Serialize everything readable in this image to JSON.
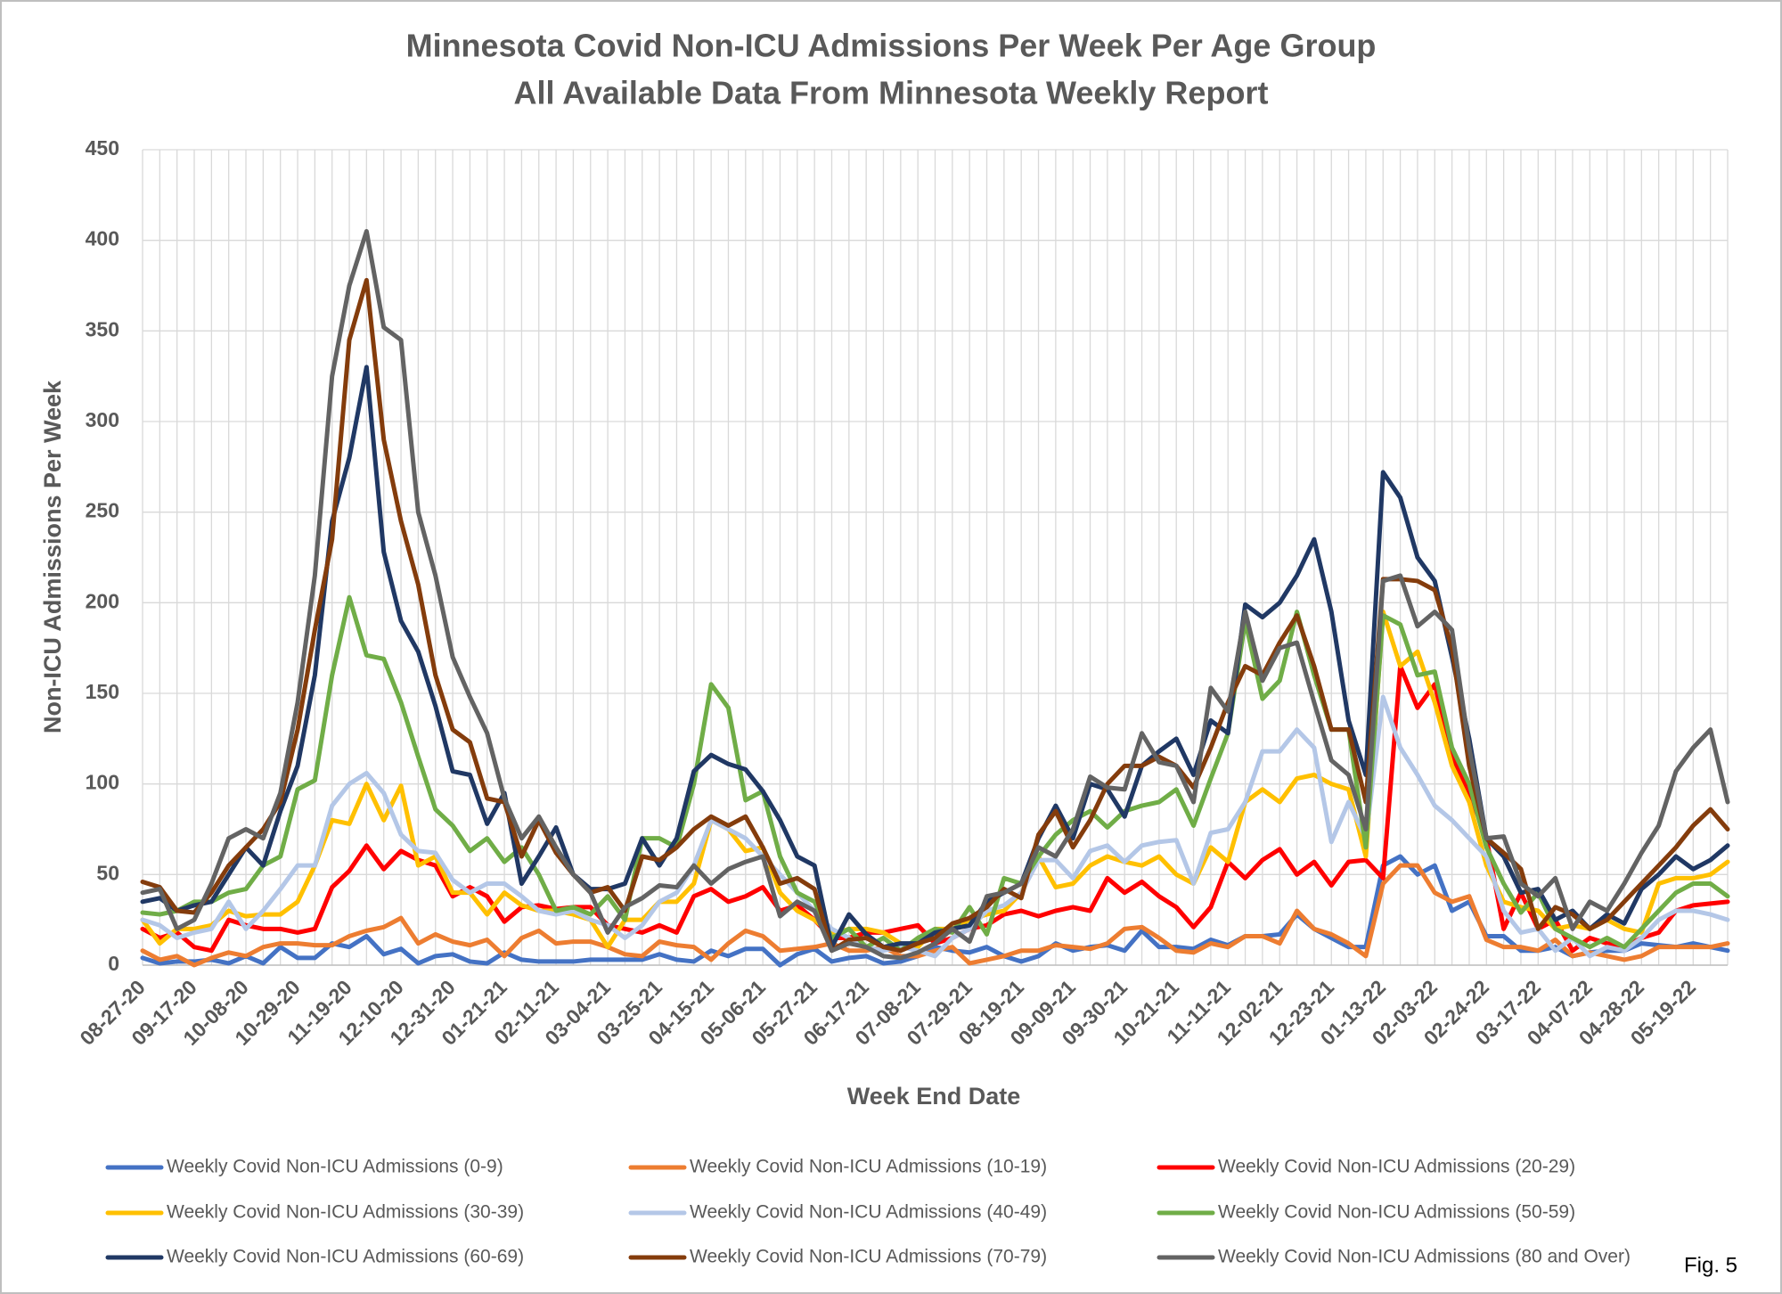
{
  "chart_data": {
    "type": "line",
    "title": "Minnesota Covid Non-ICU Admissions Per Week Per Age Group",
    "subtitle": "All Available Data From Minnesota Weekly Report",
    "x_label": "Week End Date",
    "y_label": "Non-ICU Admissions Per Week",
    "annotation": "Fig. 5",
    "grid": true,
    "legend": "bottom",
    "ylim": [
      0,
      450
    ],
    "yticks": [
      0,
      50,
      100,
      150,
      200,
      250,
      300,
      350,
      400,
      450
    ],
    "categories": [
      "08-27-20",
      null,
      null,
      "09-17-20",
      null,
      null,
      "10-08-20",
      null,
      null,
      "10-29-20",
      null,
      null,
      "11-19-20",
      null,
      null,
      "12-10-20",
      null,
      null,
      "12-31-20",
      null,
      null,
      "01-21-21",
      null,
      null,
      "02-11-21",
      null,
      null,
      "03-04-21",
      null,
      null,
      "03-25-21",
      null,
      null,
      "04-15-21",
      null,
      null,
      "05-06-21",
      null,
      null,
      "05-27-21",
      null,
      null,
      "06-17-21",
      null,
      null,
      "07-08-21",
      null,
      null,
      "07-29-21",
      null,
      null,
      "08-19-21",
      null,
      null,
      "09-09-21",
      null,
      null,
      "09-30-21",
      null,
      null,
      "10-21-21",
      null,
      null,
      "11-11-21",
      null,
      null,
      "12-02-21",
      null,
      null,
      "12-23-21",
      null,
      null,
      "01-13-22",
      null,
      null,
      "02-03-22",
      null,
      null,
      "02-24-22",
      null,
      null,
      "03-17-22",
      null,
      null,
      "04-07-22",
      null,
      null,
      "04-28-22",
      null,
      null,
      "05-19-22",
      null,
      null
    ],
    "series": [
      {
        "name": "Weekly Covid Non-ICU Admissions (0-9)",
        "color": "#4472c4",
        "values": [
          4,
          1,
          2,
          2,
          3,
          1,
          5,
          1,
          10,
          4,
          4,
          12,
          10,
          16,
          6,
          9,
          1,
          5,
          6,
          2,
          1,
          7,
          3,
          2,
          2,
          2,
          3,
          3,
          3,
          3,
          6,
          3,
          2,
          8,
          5,
          9,
          9,
          0,
          6,
          9,
          2,
          4,
          5,
          1,
          2,
          5,
          10,
          8,
          7,
          10,
          5,
          2,
          5,
          12,
          8,
          10,
          11,
          8,
          19,
          10,
          10,
          9,
          14,
          11,
          16,
          16,
          17,
          28,
          20,
          15,
          10,
          10,
          55,
          60,
          50,
          55,
          30,
          35,
          16,
          16,
          8,
          8,
          10,
          5,
          7,
          8,
          8,
          12,
          11,
          10,
          12,
          10,
          8
        ]
      },
      {
        "name": "Weekly Covid Non-ICU Admissions (10-19)",
        "color": "#ed7d31",
        "values": [
          8,
          3,
          5,
          0,
          4,
          7,
          5,
          10,
          12,
          12,
          11,
          11,
          16,
          19,
          21,
          26,
          12,
          17,
          13,
          11,
          14,
          5,
          15,
          19,
          12,
          13,
          13,
          10,
          6,
          5,
          13,
          11,
          10,
          3,
          12,
          19,
          16,
          8,
          9,
          10,
          12,
          8,
          8,
          10,
          5,
          5,
          8,
          10,
          1,
          3,
          5,
          8,
          8,
          11,
          10,
          9,
          12,
          20,
          21,
          15,
          8,
          7,
          12,
          10,
          16,
          16,
          12,
          30,
          20,
          17,
          12,
          5,
          45,
          55,
          55,
          40,
          35,
          38,
          14,
          10,
          10,
          8,
          14,
          5,
          7,
          5,
          3,
          5,
          10,
          10,
          10,
          10,
          12
        ]
      },
      {
        "name": "Weekly Covid Non-ICU Admissions (20-29)",
        "color": "#ff0000",
        "values": [
          20,
          15,
          18,
          10,
          8,
          25,
          22,
          20,
          20,
          18,
          20,
          43,
          52,
          66,
          53,
          63,
          58,
          55,
          38,
          43,
          38,
          24,
          32,
          33,
          31,
          32,
          32,
          22,
          20,
          18,
          22,
          18,
          38,
          42,
          35,
          38,
          43,
          30,
          33,
          25,
          15,
          15,
          18,
          18,
          20,
          22,
          12,
          15,
          20,
          22,
          28,
          30,
          27,
          30,
          32,
          30,
          48,
          40,
          46,
          38,
          32,
          21,
          32,
          57,
          48,
          58,
          64,
          50,
          57,
          44,
          57,
          58,
          48,
          165,
          142,
          155,
          115,
          95,
          70,
          20,
          40,
          20,
          25,
          8,
          15,
          12,
          10,
          15,
          18,
          30,
          33,
          34,
          35
        ]
      },
      {
        "name": "Weekly Covid Non-ICU Admissions (30-39)",
        "color": "#ffc000",
        "values": [
          25,
          12,
          20,
          20,
          22,
          30,
          27,
          28,
          28,
          35,
          55,
          80,
          78,
          100,
          80,
          99,
          55,
          60,
          40,
          40,
          28,
          40,
          33,
          30,
          30,
          28,
          25,
          10,
          25,
          25,
          35,
          35,
          45,
          80,
          75,
          63,
          65,
          40,
          30,
          25,
          17,
          20,
          20,
          18,
          12,
          10,
          20,
          20,
          25,
          28,
          30,
          40,
          60,
          43,
          45,
          55,
          60,
          57,
          55,
          60,
          50,
          45,
          65,
          57,
          90,
          97,
          90,
          103,
          105,
          100,
          97,
          60,
          195,
          165,
          173,
          145,
          110,
          90,
          55,
          35,
          32,
          30,
          20,
          22,
          20,
          25,
          20,
          18,
          45,
          48,
          48,
          50,
          57
        ]
      },
      {
        "name": "Weekly Covid Non-ICU Admissions (40-49)",
        "color": "#b4c7e7",
        "values": [
          25,
          22,
          15,
          18,
          20,
          35,
          20,
          30,
          42,
          55,
          55,
          88,
          100,
          106,
          95,
          72,
          63,
          62,
          47,
          40,
          45,
          45,
          38,
          30,
          28,
          30,
          25,
          22,
          15,
          22,
          35,
          40,
          55,
          80,
          75,
          70,
          60,
          50,
          40,
          30,
          20,
          15,
          10,
          8,
          10,
          8,
          5,
          15,
          20,
          30,
          33,
          40,
          58,
          58,
          48,
          63,
          66,
          57,
          66,
          68,
          69,
          45,
          73,
          75,
          90,
          118,
          118,
          130,
          120,
          68,
          90,
          70,
          148,
          120,
          105,
          88,
          80,
          70,
          60,
          30,
          18,
          20,
          8,
          15,
          5,
          10,
          8,
          15,
          25,
          30,
          30,
          28,
          25
        ]
      },
      {
        "name": "Weekly Covid Non-ICU Admissions (50-59)",
        "color": "#70ad47",
        "values": [
          29,
          28,
          30,
          35,
          35,
          40,
          42,
          55,
          60,
          97,
          102,
          160,
          203,
          171,
          169,
          145,
          115,
          86,
          77,
          63,
          70,
          57,
          65,
          50,
          30,
          32,
          28,
          38,
          25,
          70,
          70,
          65,
          100,
          155,
          142,
          91,
          96,
          60,
          40,
          35,
          15,
          20,
          10,
          15,
          8,
          15,
          20,
          18,
          32,
          17,
          48,
          45,
          60,
          72,
          80,
          85,
          76,
          85,
          88,
          90,
          97,
          77,
          103,
          128,
          190,
          147,
          157,
          195,
          160,
          130,
          130,
          65,
          193,
          188,
          160,
          162,
          120,
          100,
          65,
          45,
          29,
          40,
          20,
          15,
          10,
          15,
          10,
          20,
          30,
          40,
          45,
          45,
          38
        ]
      },
      {
        "name": "Weekly Covid Non-ICU Admissions (60-69)",
        "color": "#203864",
        "values": [
          35,
          37,
          30,
          33,
          35,
          50,
          65,
          55,
          85,
          110,
          160,
          245,
          280,
          330,
          228,
          190,
          173,
          143,
          107,
          105,
          78,
          95,
          45,
          60,
          76,
          50,
          42,
          42,
          45,
          70,
          55,
          70,
          107,
          116,
          111,
          108,
          96,
          80,
          60,
          55,
          10,
          28,
          17,
          10,
          12,
          12,
          18,
          20,
          22,
          35,
          40,
          45,
          70,
          88,
          70,
          100,
          97,
          82,
          110,
          118,
          125,
          105,
          135,
          128,
          199,
          192,
          200,
          215,
          235,
          195,
          135,
          105,
          272,
          258,
          225,
          212,
          170,
          125,
          70,
          60,
          40,
          42,
          25,
          30,
          20,
          28,
          23,
          42,
          50,
          60,
          53,
          58,
          66
        ]
      },
      {
        "name": "Weekly Covid Non-ICU Admissions (70-79)",
        "color": "#843c0c",
        "values": [
          46,
          43,
          30,
          29,
          40,
          55,
          65,
          75,
          90,
          130,
          185,
          235,
          345,
          378,
          290,
          245,
          210,
          160,
          130,
          123,
          92,
          90,
          60,
          80,
          62,
          50,
          40,
          43,
          30,
          60,
          58,
          65,
          75,
          82,
          77,
          82,
          65,
          45,
          48,
          42,
          8,
          14,
          15,
          10,
          8,
          12,
          15,
          23,
          26,
          32,
          42,
          37,
          72,
          85,
          65,
          80,
          100,
          110,
          110,
          115,
          110,
          98,
          120,
          145,
          165,
          160,
          178,
          193,
          165,
          130,
          130,
          90,
          213,
          213,
          212,
          207,
          175,
          110,
          70,
          62,
          53,
          20,
          32,
          28,
          20,
          25,
          35,
          45,
          55,
          65,
          77,
          86,
          75
        ]
      },
      {
        "name": "Weekly Covid Non-ICU Admissions (80 and Over)",
        "color": "#636363",
        "values": [
          40,
          42,
          20,
          25,
          45,
          70,
          75,
          70,
          95,
          145,
          215,
          325,
          375,
          405,
          352,
          345,
          250,
          215,
          170,
          148,
          128,
          92,
          70,
          82,
          65,
          50,
          40,
          18,
          32,
          37,
          44,
          43,
          55,
          45,
          53,
          57,
          60,
          27,
          35,
          30,
          8,
          12,
          10,
          5,
          4,
          7,
          12,
          20,
          13,
          38,
          40,
          45,
          65,
          60,
          75,
          104,
          98,
          97,
          128,
          112,
          110,
          90,
          153,
          140,
          195,
          157,
          175,
          178,
          145,
          113,
          105,
          75,
          212,
          215,
          187,
          195,
          185,
          120,
          70,
          71,
          45,
          38,
          48,
          20,
          35,
          30,
          45,
          62,
          77,
          107,
          120,
          130,
          90
        ]
      }
    ]
  }
}
